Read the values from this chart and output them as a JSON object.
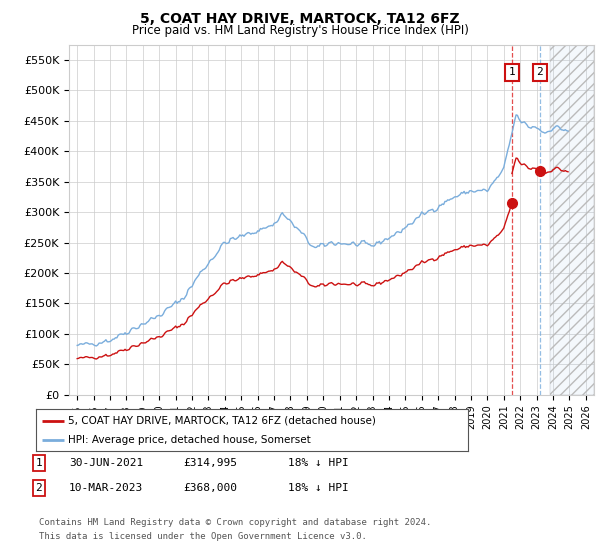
{
  "title": "5, COAT HAY DRIVE, MARTOCK, TA12 6FZ",
  "subtitle": "Price paid vs. HM Land Registry's House Price Index (HPI)",
  "ylim": [
    0,
    575000
  ],
  "yticks": [
    0,
    50000,
    100000,
    150000,
    200000,
    250000,
    300000,
    350000,
    400000,
    450000,
    500000,
    550000
  ],
  "ytick_labels": [
    "£0",
    "£50K",
    "£100K",
    "£150K",
    "£200K",
    "£250K",
    "£300K",
    "£350K",
    "£400K",
    "£450K",
    "£500K",
    "£550K"
  ],
  "hpi_color": "#7aaddc",
  "property_color": "#cc1111",
  "transaction1_date": 2021.5,
  "transaction1_price": 314995,
  "transaction2_date": 2023.2,
  "transaction2_price": 368000,
  "future_shade_start": 2023.83,
  "xlim": [
    1994.5,
    2026.5
  ],
  "xticks": [
    1995,
    1996,
    1997,
    1998,
    1999,
    2000,
    2001,
    2002,
    2003,
    2004,
    2005,
    2006,
    2007,
    2008,
    2009,
    2010,
    2011,
    2012,
    2013,
    2014,
    2015,
    2016,
    2017,
    2018,
    2019,
    2020,
    2021,
    2022,
    2023,
    2024,
    2025,
    2026
  ],
  "footer_line1": "Contains HM Land Registry data © Crown copyright and database right 2024.",
  "footer_line2": "This data is licensed under the Open Government Licence v3.0.",
  "legend_line1": "5, COAT HAY DRIVE, MARTOCK, TA12 6FZ (detached house)",
  "legend_line2": "HPI: Average price, detached house, Somerset",
  "bg_color": "#ffffff",
  "grid_color": "#cccccc"
}
